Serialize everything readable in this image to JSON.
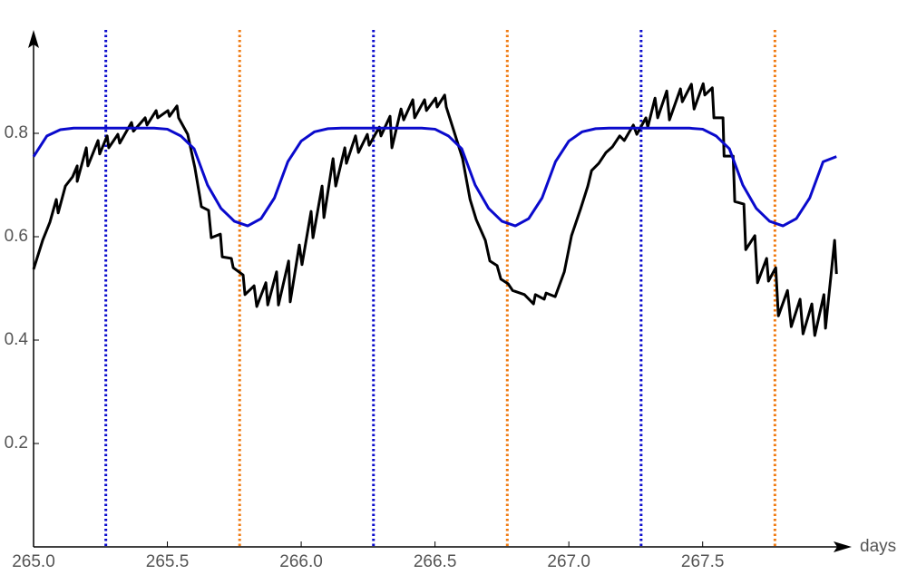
{
  "chart_data": {
    "type": "line",
    "x_label": "days",
    "xlim": [
      265,
      268.05
    ],
    "ylim": [
      0,
      1
    ],
    "xticks": [
      {
        "value": 265,
        "label": "265.0"
      },
      {
        "value": 265.5,
        "label": "265.5"
      },
      {
        "value": 266,
        "label": "266.0"
      },
      {
        "value": 266.5,
        "label": "266.5"
      },
      {
        "value": 267,
        "label": "267.0"
      },
      {
        "value": 267.5,
        "label": "267.5"
      }
    ],
    "yticks": [
      0.2,
      0.4,
      0.6,
      0.8
    ],
    "reference_lines": [
      {
        "x": 265.27,
        "color": "#0a0acc"
      },
      {
        "x": 266.27,
        "color": "#0a0acc"
      },
      {
        "x": 267.27,
        "color": "#0a0acc"
      },
      {
        "x": 265.77,
        "color": "#f07a10"
      },
      {
        "x": 266.77,
        "color": "#f07a10"
      },
      {
        "x": 267.77,
        "color": "#f07a10"
      }
    ],
    "series": [
      {
        "color": "#000000",
        "x": [
          265.0,
          265.034,
          265.061,
          265.085,
          265.092,
          265.119,
          265.146,
          265.163,
          265.163,
          265.197,
          265.203,
          265.241,
          265.247,
          265.275,
          265.281,
          265.315,
          265.322,
          265.366,
          265.373,
          265.417,
          265.424,
          265.458,
          265.464,
          265.502,
          265.508,
          265.536,
          265.542,
          265.576,
          265.603,
          265.62,
          265.627,
          265.654,
          265.664,
          265.698,
          265.705,
          265.739,
          265.746,
          265.783,
          265.79,
          265.824,
          265.834,
          265.868,
          265.875,
          265.908,
          265.915,
          265.953,
          265.959,
          265.993,
          266.003,
          266.037,
          266.044,
          266.078,
          266.085,
          266.119,
          266.129,
          266.163,
          266.169,
          266.203,
          266.214,
          266.247,
          266.254,
          266.292,
          266.298,
          266.332,
          266.339,
          266.373,
          266.383,
          266.417,
          266.424,
          266.461,
          266.468,
          266.502,
          266.508,
          266.536,
          266.542,
          266.569,
          266.603,
          266.631,
          266.654,
          266.688,
          266.705,
          266.732,
          266.746,
          266.773,
          266.79,
          266.834,
          266.868,
          266.875,
          266.908,
          266.915,
          266.949,
          266.983,
          267.01,
          267.044,
          267.071,
          267.085,
          267.112,
          267.139,
          267.163,
          267.19,
          267.207,
          267.241,
          267.254,
          267.288,
          267.295,
          267.322,
          267.332,
          267.366,
          267.376,
          267.417,
          267.424,
          267.458,
          267.468,
          267.502,
          267.508,
          267.536,
          267.542,
          267.576,
          267.58,
          267.614,
          267.62,
          267.654,
          267.661,
          267.695,
          267.705,
          267.739,
          267.746,
          267.773,
          267.783,
          267.817,
          267.831,
          267.864,
          267.875,
          267.908,
          267.919,
          267.953,
          267.959,
          267.993,
          268.0
        ],
        "values": [
          0.537,
          0.593,
          0.628,
          0.672,
          0.646,
          0.698,
          0.716,
          0.737,
          0.707,
          0.772,
          0.737,
          0.786,
          0.76,
          0.795,
          0.772,
          0.798,
          0.781,
          0.821,
          0.804,
          0.83,
          0.816,
          0.844,
          0.83,
          0.844,
          0.833,
          0.853,
          0.83,
          0.798,
          0.733,
          0.681,
          0.658,
          0.651,
          0.598,
          0.605,
          0.561,
          0.558,
          0.54,
          0.526,
          0.488,
          0.505,
          0.465,
          0.511,
          0.468,
          0.532,
          0.468,
          0.553,
          0.474,
          0.584,
          0.546,
          0.649,
          0.598,
          0.698,
          0.637,
          0.751,
          0.698,
          0.772,
          0.742,
          0.795,
          0.763,
          0.798,
          0.777,
          0.812,
          0.795,
          0.833,
          0.772,
          0.847,
          0.826,
          0.865,
          0.83,
          0.865,
          0.844,
          0.868,
          0.851,
          0.874,
          0.851,
          0.807,
          0.751,
          0.672,
          0.633,
          0.593,
          0.553,
          0.544,
          0.518,
          0.509,
          0.496,
          0.488,
          0.47,
          0.488,
          0.479,
          0.491,
          0.484,
          0.532,
          0.602,
          0.654,
          0.698,
          0.728,
          0.742,
          0.763,
          0.774,
          0.795,
          0.786,
          0.816,
          0.798,
          0.83,
          0.812,
          0.868,
          0.83,
          0.882,
          0.826,
          0.886,
          0.861,
          0.895,
          0.847,
          0.896,
          0.874,
          0.888,
          0.83,
          0.83,
          0.756,
          0.756,
          0.668,
          0.663,
          0.575,
          0.602,
          0.511,
          0.558,
          0.514,
          0.54,
          0.447,
          0.496,
          0.426,
          0.479,
          0.412,
          0.47,
          0.409,
          0.488,
          0.423,
          0.593,
          0.528
        ]
      },
      {
        "color": "#0a0acc",
        "x": [
          265.0,
          265.05,
          265.1,
          265.15,
          265.2,
          265.25,
          265.3,
          265.35,
          265.4,
          265.45,
          265.5,
          265.55,
          265.6,
          265.65,
          265.7,
          265.75,
          265.8,
          265.85,
          265.9,
          265.95,
          266.0,
          266.05,
          266.1,
          266.15,
          266.2,
          266.25,
          266.3,
          266.35,
          266.4,
          266.45,
          266.5,
          266.55,
          266.6,
          266.65,
          266.7,
          266.75,
          266.8,
          266.85,
          266.9,
          266.95,
          267.0,
          267.05,
          267.1,
          267.15,
          267.2,
          267.25,
          267.3,
          267.35,
          267.4,
          267.45,
          267.5,
          267.55,
          267.6,
          267.65,
          267.7,
          267.75,
          267.8,
          267.85,
          267.9,
          267.95,
          268.0
        ],
        "values": [
          0.755,
          0.795,
          0.807,
          0.81,
          0.81,
          0.81,
          0.81,
          0.81,
          0.81,
          0.81,
          0.808,
          0.795,
          0.77,
          0.7,
          0.655,
          0.63,
          0.621,
          0.635,
          0.675,
          0.745,
          0.785,
          0.803,
          0.809,
          0.81,
          0.81,
          0.81,
          0.81,
          0.81,
          0.81,
          0.81,
          0.808,
          0.795,
          0.77,
          0.7,
          0.655,
          0.63,
          0.621,
          0.635,
          0.675,
          0.745,
          0.785,
          0.803,
          0.809,
          0.81,
          0.81,
          0.81,
          0.81,
          0.81,
          0.81,
          0.81,
          0.808,
          0.795,
          0.77,
          0.7,
          0.655,
          0.63,
          0.621,
          0.635,
          0.675,
          0.745,
          0.755
        ]
      }
    ]
  }
}
